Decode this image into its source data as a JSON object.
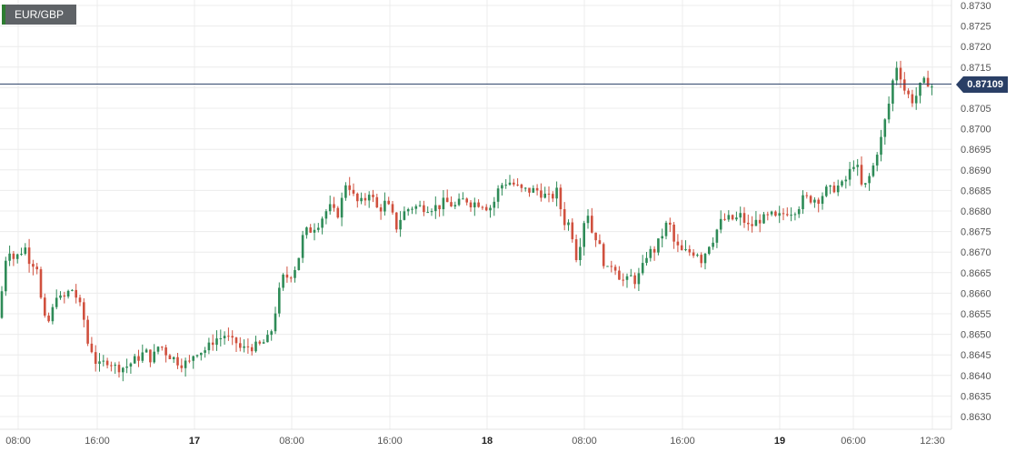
{
  "symbol": "EUR/GBP",
  "last_price_label": "0.87109",
  "colors": {
    "up": "#2e8b57",
    "down": "#d0503e",
    "grid": "#ececec",
    "axis_text": "#555555",
    "last_line": "#2a3f66"
  },
  "chart_data": {
    "type": "candlestick",
    "title": "EUR/GBP",
    "ylim": [
      0.8627,
      0.8731
    ],
    "yticks": [
      "0.8730",
      "0.8725",
      "0.8720",
      "0.8715",
      "0.8710",
      "0.8705",
      "0.8700",
      "0.8695",
      "0.8690",
      "0.8685",
      "0.8680",
      "0.8675",
      "0.8670",
      "0.8665",
      "0.8660",
      "0.8655",
      "0.8650",
      "0.8645",
      "0.8640",
      "0.8635",
      "0.8630"
    ],
    "xticks": [
      {
        "label": "08:00",
        "bold": false
      },
      {
        "label": "16:00",
        "bold": false
      },
      {
        "label": "17",
        "bold": true
      },
      {
        "label": "08:00",
        "bold": false
      },
      {
        "label": "16:00",
        "bold": false
      },
      {
        "label": "18",
        "bold": true
      },
      {
        "label": "08:00",
        "bold": false
      },
      {
        "label": "16:00",
        "bold": false
      },
      {
        "label": "19",
        "bold": true
      },
      {
        "label": "06:00",
        "bold": false
      },
      {
        "label": "12:30",
        "bold": false
      }
    ],
    "last_price": 0.87109,
    "close_path": [
      [
        0,
        0.8654
      ],
      [
        4,
        0.8667
      ],
      [
        10,
        0.8671
      ],
      [
        16,
        0.8668
      ],
      [
        22,
        0.867
      ],
      [
        28,
        0.8671
      ],
      [
        34,
        0.8667
      ],
      [
        40,
        0.8668
      ],
      [
        44,
        0.866
      ],
      [
        48,
        0.8654
      ],
      [
        52,
        0.8652
      ],
      [
        58,
        0.8656
      ],
      [
        62,
        0.866
      ],
      [
        68,
        0.8658
      ],
      [
        74,
        0.866
      ],
      [
        80,
        0.8661
      ],
      [
        86,
        0.8658
      ],
      [
        92,
        0.8654
      ],
      [
        96,
        0.8648
      ],
      [
        100,
        0.8647
      ],
      [
        104,
        0.8644
      ],
      [
        108,
        0.8642
      ],
      [
        114,
        0.8643
      ],
      [
        120,
        0.8644
      ],
      [
        126,
        0.8642
      ],
      [
        132,
        0.8642
      ],
      [
        138,
        0.8642
      ],
      [
        144,
        0.8643
      ],
      [
        150,
        0.8644
      ],
      [
        156,
        0.8645
      ],
      [
        160,
        0.8646
      ],
      [
        164,
        0.8644
      ],
      [
        170,
        0.8645
      ],
      [
        176,
        0.8648
      ],
      [
        180,
        0.8646
      ],
      [
        186,
        0.8645
      ],
      [
        192,
        0.8644
      ],
      [
        198,
        0.8643
      ],
      [
        204,
        0.8643
      ],
      [
        210,
        0.8643
      ],
      [
        214,
        0.8646
      ],
      [
        218,
        0.8646
      ],
      [
        224,
        0.8646
      ],
      [
        230,
        0.8647
      ],
      [
        236,
        0.8649
      ],
      [
        242,
        0.8649
      ],
      [
        248,
        0.865
      ],
      [
        254,
        0.8648
      ],
      [
        260,
        0.8648
      ],
      [
        266,
        0.8646
      ],
      [
        272,
        0.8647
      ],
      [
        278,
        0.8647
      ],
      [
        284,
        0.8647
      ],
      [
        290,
        0.8648
      ],
      [
        296,
        0.8649
      ],
      [
        300,
        0.8652
      ],
      [
        304,
        0.8657
      ],
      [
        308,
        0.8661
      ],
      [
        312,
        0.8664
      ],
      [
        318,
        0.8664
      ],
      [
        324,
        0.8666
      ],
      [
        328,
        0.8668
      ],
      [
        332,
        0.8673
      ],
      [
        336,
        0.8675
      ],
      [
        340,
        0.8675
      ],
      [
        344,
        0.8676
      ],
      [
        350,
        0.8677
      ],
      [
        356,
        0.8679
      ],
      [
        362,
        0.8681
      ],
      [
        366,
        0.868
      ],
      [
        370,
        0.8679
      ],
      [
        374,
        0.868
      ],
      [
        378,
        0.8685
      ],
      [
        382,
        0.8688
      ],
      [
        386,
        0.8685
      ],
      [
        390,
        0.8683
      ],
      [
        394,
        0.8682
      ],
      [
        398,
        0.8682
      ],
      [
        402,
        0.8683
      ],
      [
        406,
        0.8685
      ],
      [
        410,
        0.8683
      ],
      [
        416,
        0.868
      ],
      [
        420,
        0.8681
      ],
      [
        424,
        0.8682
      ],
      [
        430,
        0.868
      ],
      [
        436,
        0.8676
      ],
      [
        440,
        0.8678
      ],
      [
        446,
        0.868
      ],
      [
        452,
        0.8681
      ],
      [
        458,
        0.8681
      ],
      [
        464,
        0.8681
      ],
      [
        470,
        0.8681
      ],
      [
        476,
        0.8681
      ],
      [
        482,
        0.8681
      ],
      [
        488,
        0.8682
      ],
      [
        494,
        0.8682
      ],
      [
        500,
        0.8681
      ],
      [
        506,
        0.8682
      ],
      [
        512,
        0.8683
      ],
      [
        518,
        0.8682
      ],
      [
        524,
        0.8682
      ],
      [
        530,
        0.8682
      ],
      [
        536,
        0.8681
      ],
      [
        542,
        0.8681
      ],
      [
        546,
        0.8684
      ],
      [
        550,
        0.8686
      ],
      [
        556,
        0.8687
      ],
      [
        562,
        0.8687
      ],
      [
        568,
        0.8686
      ],
      [
        574,
        0.8685
      ],
      [
        580,
        0.8685
      ],
      [
        586,
        0.8685
      ],
      [
        592,
        0.8685
      ],
      [
        598,
        0.8684
      ],
      [
        604,
        0.8683
      ],
      [
        610,
        0.8684
      ],
      [
        614,
        0.8685
      ],
      [
        618,
        0.8679
      ],
      [
        622,
        0.8677
      ],
      [
        626,
        0.8677
      ],
      [
        630,
        0.8674
      ],
      [
        634,
        0.8669
      ],
      [
        638,
        0.8672
      ],
      [
        642,
        0.8677
      ],
      [
        646,
        0.8681
      ],
      [
        650,
        0.8675
      ],
      [
        654,
        0.8675
      ],
      [
        658,
        0.8672
      ],
      [
        662,
        0.867
      ],
      [
        666,
        0.8666
      ],
      [
        670,
        0.8665
      ],
      [
        674,
        0.8668
      ],
      [
        678,
        0.8666
      ],
      [
        682,
        0.8664
      ],
      [
        686,
        0.8663
      ],
      [
        690,
        0.8663
      ],
      [
        694,
        0.8664
      ],
      [
        698,
        0.8663
      ],
      [
        702,
        0.8664
      ],
      [
        706,
        0.8665
      ],
      [
        710,
        0.8669
      ],
      [
        714,
        0.867
      ],
      [
        718,
        0.867
      ],
      [
        722,
        0.8671
      ],
      [
        726,
        0.8673
      ],
      [
        730,
        0.8675
      ],
      [
        734,
        0.8677
      ],
      [
        738,
        0.8676
      ],
      [
        742,
        0.8672
      ],
      [
        746,
        0.8671
      ],
      [
        750,
        0.867
      ],
      [
        756,
        0.867
      ],
      [
        762,
        0.867
      ],
      [
        768,
        0.867
      ],
      [
        772,
        0.8668
      ],
      [
        776,
        0.867
      ],
      [
        780,
        0.8672
      ],
      [
        784,
        0.8673
      ],
      [
        788,
        0.8675
      ],
      [
        792,
        0.8677
      ],
      [
        798,
        0.8678
      ],
      [
        804,
        0.8678
      ],
      [
        810,
        0.8678
      ],
      [
        816,
        0.8679
      ],
      [
        820,
        0.8677
      ],
      [
        824,
        0.8676
      ],
      [
        830,
        0.8677
      ],
      [
        836,
        0.8678
      ],
      [
        842,
        0.8678
      ],
      [
        848,
        0.8679
      ],
      [
        854,
        0.8678
      ],
      [
        860,
        0.8679
      ],
      [
        866,
        0.868
      ],
      [
        872,
        0.868
      ],
      [
        878,
        0.8681
      ],
      [
        884,
        0.8683
      ],
      [
        890,
        0.8683
      ],
      [
        896,
        0.8683
      ],
      [
        902,
        0.8683
      ],
      [
        908,
        0.8685
      ],
      [
        914,
        0.8685
      ],
      [
        920,
        0.8686
      ],
      [
        926,
        0.8686
      ],
      [
        932,
        0.8688
      ],
      [
        936,
        0.869
      ],
      [
        940,
        0.8692
      ],
      [
        944,
        0.869
      ],
      [
        948,
        0.8686
      ],
      [
        952,
        0.8686
      ],
      [
        956,
        0.8688
      ],
      [
        960,
        0.869
      ],
      [
        964,
        0.8694
      ],
      [
        968,
        0.8696
      ],
      [
        972,
        0.87
      ],
      [
        976,
        0.8704
      ],
      [
        980,
        0.8708
      ],
      [
        984,
        0.8714
      ],
      [
        988,
        0.8716
      ],
      [
        992,
        0.8712
      ],
      [
        996,
        0.8709
      ],
      [
        1000,
        0.8708
      ],
      [
        1004,
        0.8707
      ],
      [
        1008,
        0.8708
      ],
      [
        1012,
        0.871
      ],
      [
        1016,
        0.8711
      ],
      [
        1020,
        0.8712
      ],
      [
        1024,
        0.871
      ],
      [
        1028,
        0.8711
      ]
    ]
  }
}
